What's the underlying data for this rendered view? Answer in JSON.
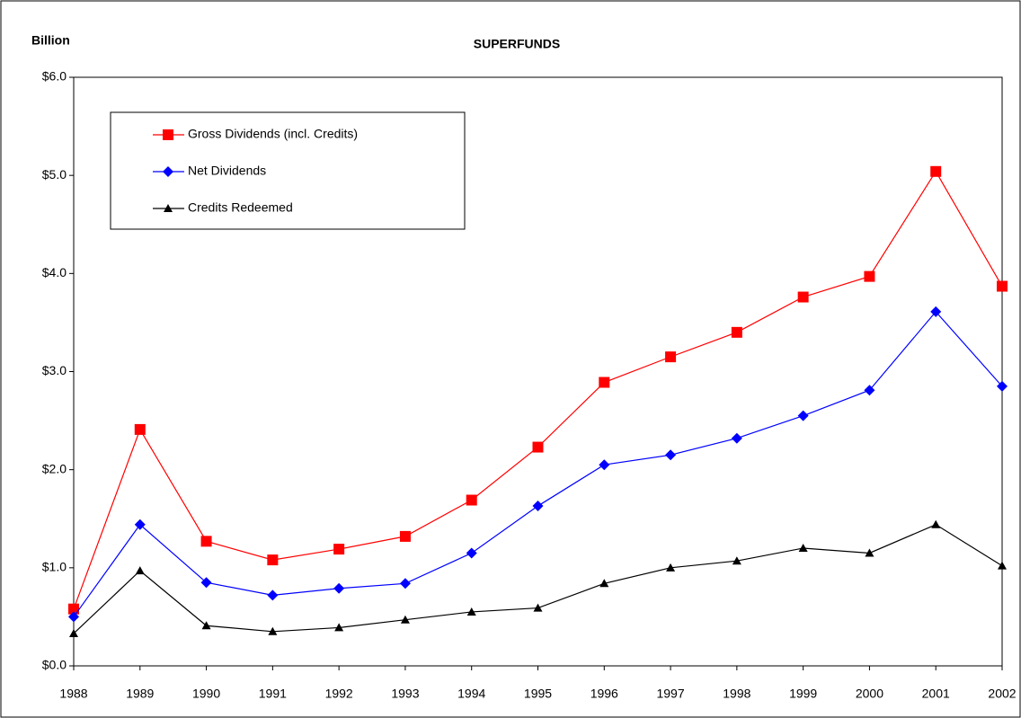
{
  "chart_data": {
    "type": "line",
    "title": "SUPERFUNDS",
    "y_label": "Billion",
    "categories": [
      "1988",
      "1989",
      "1990",
      "1991",
      "1992",
      "1993",
      "1994",
      "1995",
      "1996",
      "1997",
      "1998",
      "1999",
      "2000",
      "2001",
      "2002"
    ],
    "series": [
      {
        "name": "Gross Dividends (incl. Credits)",
        "color": "#ff0000",
        "marker": "square",
        "values": [
          0.58,
          2.41,
          1.27,
          1.08,
          1.19,
          1.32,
          1.69,
          2.23,
          2.89,
          3.15,
          3.4,
          3.76,
          3.97,
          5.04,
          3.87
        ]
      },
      {
        "name": "Net Dividends",
        "color": "#0000ff",
        "marker": "diamond",
        "values": [
          0.5,
          1.44,
          0.85,
          0.72,
          0.79,
          0.84,
          1.15,
          1.63,
          2.05,
          2.15,
          2.32,
          2.55,
          2.81,
          3.61,
          2.85
        ]
      },
      {
        "name": "Credits Redeemed",
        "color": "#000000",
        "marker": "triangle",
        "values": [
          0.33,
          0.97,
          0.41,
          0.35,
          0.39,
          0.47,
          0.55,
          0.59,
          0.84,
          1.0,
          1.07,
          1.2,
          1.15,
          1.44,
          1.02
        ]
      }
    ],
    "ylim": [
      0,
      6
    ],
    "yticks": [
      {
        "value": 0,
        "label": "$0.0"
      },
      {
        "value": 1,
        "label": "$1.0"
      },
      {
        "value": 2,
        "label": "$2.0"
      },
      {
        "value": 3,
        "label": "$3.0"
      },
      {
        "value": 4,
        "label": "$4.0"
      },
      {
        "value": 5,
        "label": "$5.0"
      },
      {
        "value": 6,
        "label": "$6.0"
      }
    ],
    "legend": "upper left",
    "grid": false
  }
}
